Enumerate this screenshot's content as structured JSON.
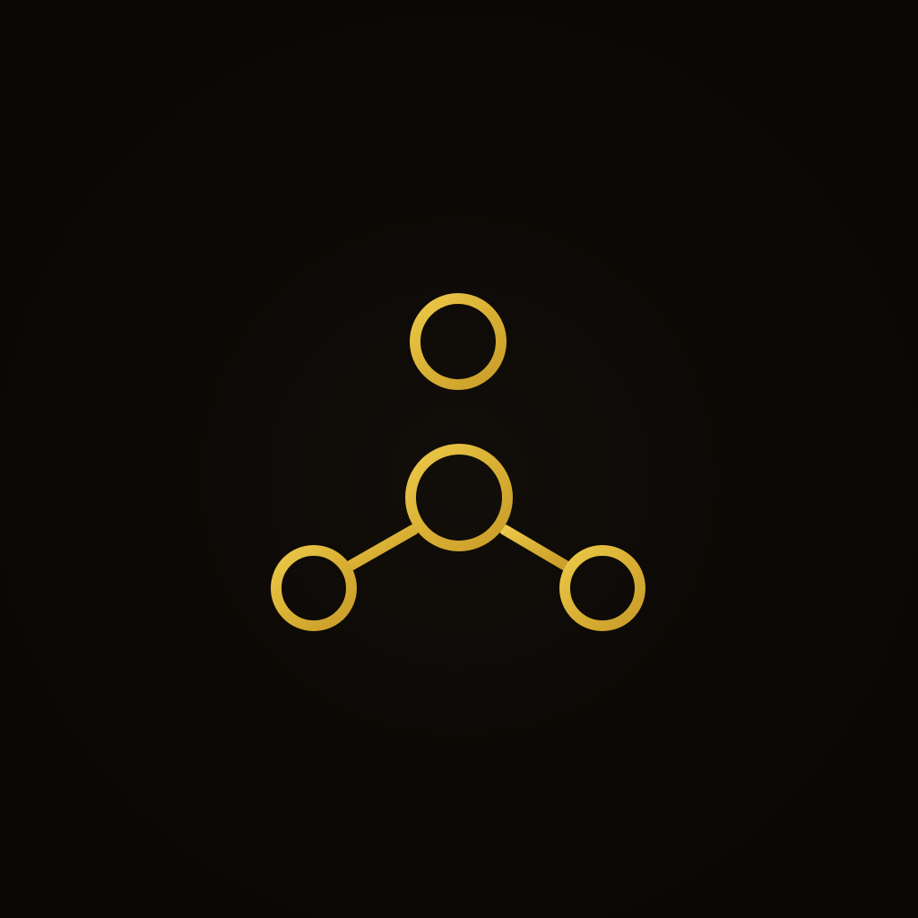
{
  "background_color": "#0d0a07",
  "emblem": {
    "icon": "molecule-node-icon",
    "color": "#e0b93a",
    "nodes": [
      "center-node",
      "top-node",
      "left-node",
      "right-node"
    ],
    "connectors": [
      "top-connector",
      "left-connector",
      "right-connector"
    ]
  }
}
